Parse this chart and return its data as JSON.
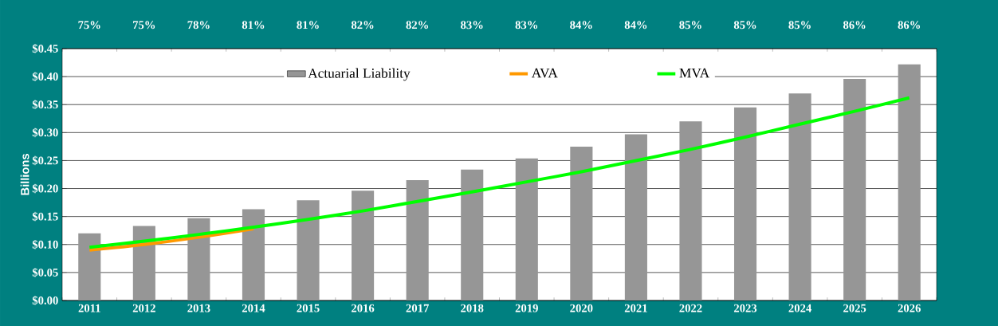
{
  "chart_data": {
    "type": "bar",
    "ylabel": "Billions",
    "categories": [
      "2011",
      "2012",
      "2013",
      "2014",
      "2015",
      "2016",
      "2017",
      "2018",
      "2019",
      "2020",
      "2021",
      "2022",
      "2023",
      "2024",
      "2025",
      "2026"
    ],
    "series": [
      {
        "name": "Actuarial Liability",
        "color": "#969696",
        "values": [
          0.12,
          0.133,
          0.147,
          0.163,
          0.179,
          0.196,
          0.215,
          0.234,
          0.254,
          0.275,
          0.297,
          0.32,
          0.345,
          0.37,
          0.396,
          0.422
        ]
      },
      {
        "name": "AVA",
        "type": "line",
        "color": "#ff9900",
        "values": [
          0.09,
          0.1,
          0.113,
          0.128,
          null,
          null,
          null,
          null,
          null,
          null,
          null,
          null,
          null,
          null,
          null,
          null
        ]
      },
      {
        "name": "MVA",
        "type": "line",
        "color": "#00ff00",
        "values": [
          0.095,
          0.106,
          0.118,
          0.131,
          0.145,
          0.16,
          0.177,
          0.194,
          0.212,
          0.23,
          0.25,
          0.27,
          0.292,
          0.315,
          0.338,
          0.362
        ]
      }
    ],
    "annotations": [
      "75%",
      "75%",
      "78%",
      "81%",
      "81%",
      "82%",
      "82%",
      "83%",
      "83%",
      "84%",
      "84%",
      "85%",
      "85%",
      "85%",
      "86%",
      "86%"
    ],
    "ylim": [
      0,
      0.45
    ],
    "yticks": [
      {
        "value": 0,
        "label": "$0.00"
      },
      {
        "value": 0.05,
        "label": "$0.05"
      },
      {
        "value": 0.1,
        "label": "$0.10"
      },
      {
        "value": 0.15,
        "label": "$0.15"
      },
      {
        "value": 0.2,
        "label": "$0.20"
      },
      {
        "value": 0.25,
        "label": "$0.25"
      },
      {
        "value": 0.3,
        "label": "$0.30"
      },
      {
        "value": 0.35,
        "label": "$0.35"
      },
      {
        "value": 0.4,
        "label": "$0.40"
      },
      {
        "value": 0.45,
        "label": "$0.45"
      }
    ],
    "grid": "y",
    "legend": "top"
  }
}
